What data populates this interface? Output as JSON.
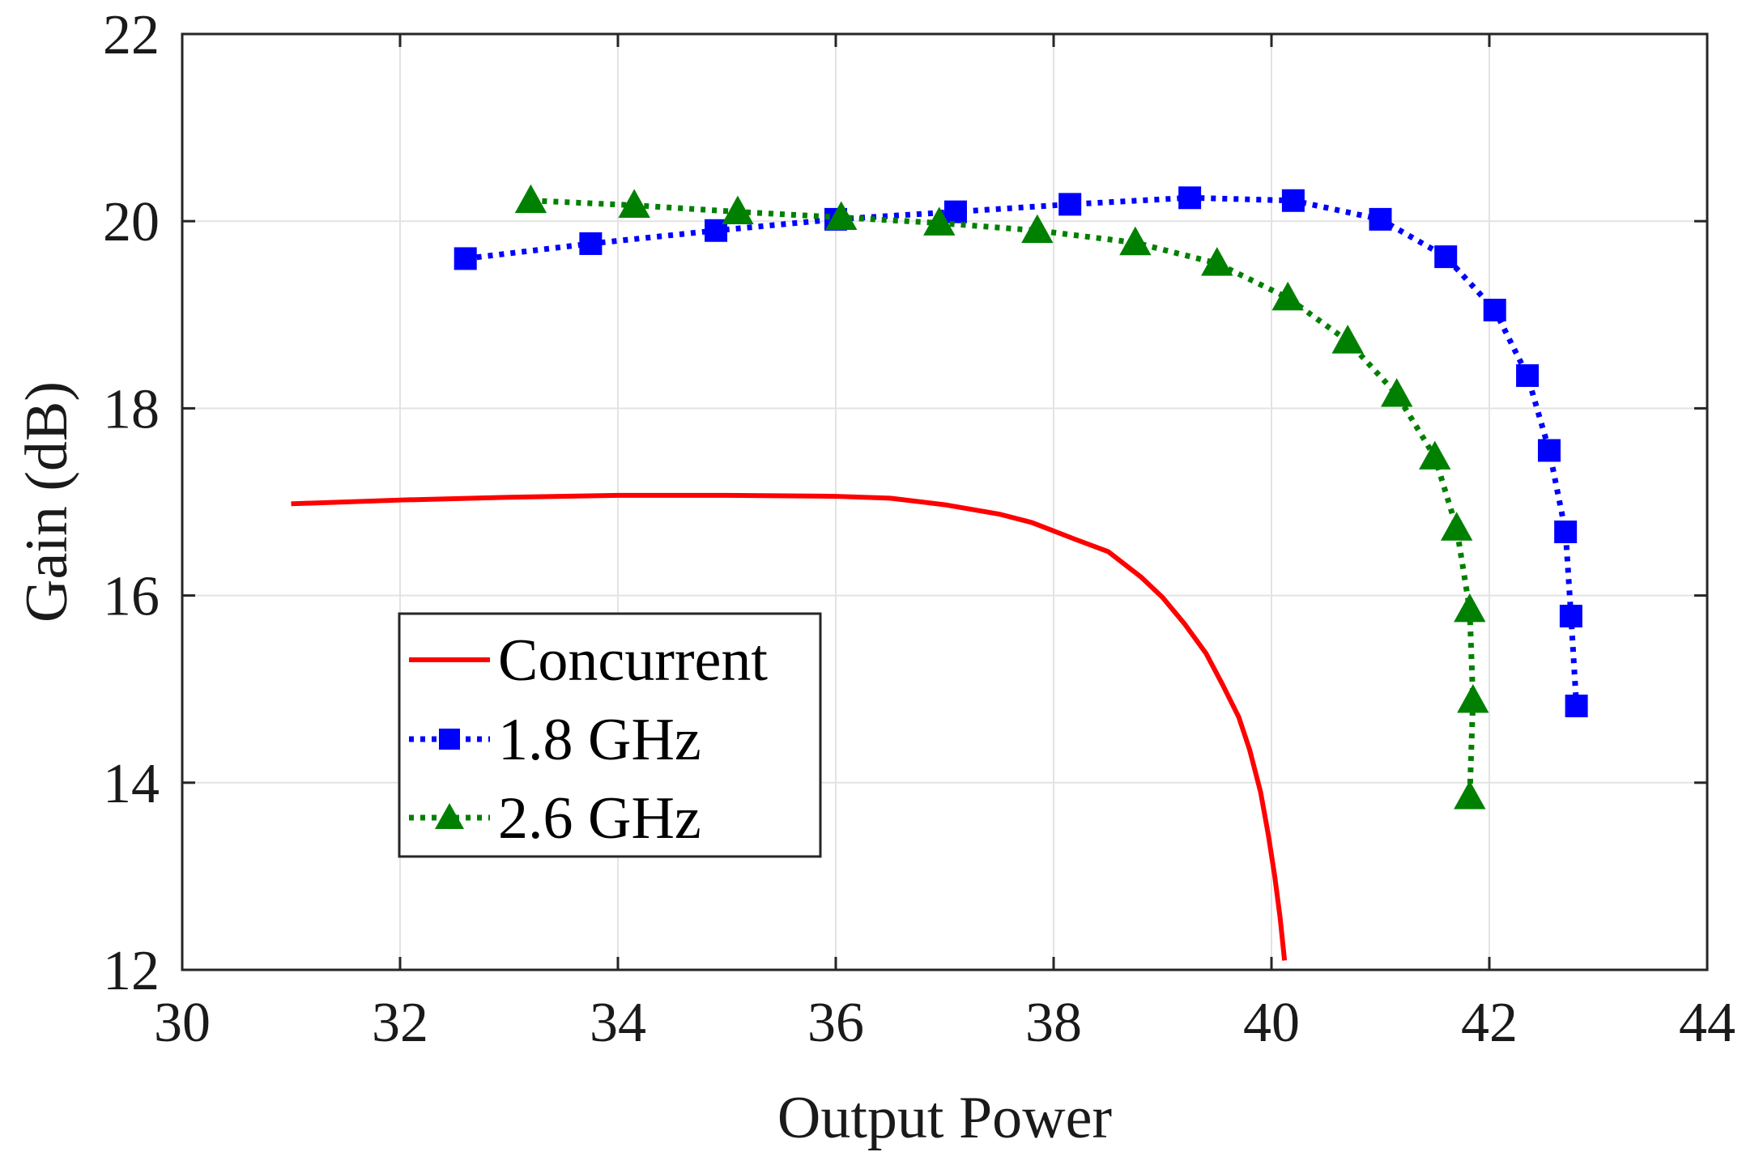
{
  "chart_data": {
    "type": "line",
    "title": "",
    "xlabel": "Output Power",
    "ylabel": "Gain (dB)",
    "xlim": [
      30,
      44
    ],
    "ylim": [
      12,
      22
    ],
    "x_ticks": [
      30,
      32,
      34,
      36,
      38,
      40,
      42,
      44
    ],
    "y_ticks": [
      12,
      14,
      16,
      18,
      20,
      22
    ],
    "grid": true,
    "legend_position": "lower-left",
    "series": [
      {
        "name": "Concurrent",
        "color": "#ff0000",
        "line_style": "solid",
        "marker": "none",
        "x": [
          31.0,
          32.0,
          33.0,
          34.0,
          35.0,
          36.0,
          36.5,
          37.0,
          37.5,
          37.8,
          38.2,
          38.5,
          38.8,
          39.0,
          39.2,
          39.4,
          39.55,
          39.7,
          39.8,
          39.9,
          39.97,
          40.03,
          40.08,
          40.12
        ],
        "y": [
          16.98,
          17.02,
          17.05,
          17.07,
          17.07,
          17.06,
          17.04,
          16.97,
          16.87,
          16.78,
          16.6,
          16.47,
          16.2,
          15.98,
          15.7,
          15.38,
          15.05,
          14.7,
          14.35,
          13.9,
          13.45,
          13.0,
          12.55,
          12.1
        ]
      },
      {
        "name": "1.8 GHz",
        "color": "#0000ff",
        "line_style": "dotted",
        "marker": "square",
        "x": [
          32.6,
          33.75,
          34.9,
          36.0,
          37.1,
          38.15,
          39.25,
          40.2,
          41.0,
          41.6,
          42.05,
          42.35,
          42.55,
          42.7,
          42.75,
          42.8
        ],
        "y": [
          19.6,
          19.76,
          19.9,
          20.02,
          20.1,
          20.18,
          20.25,
          20.22,
          20.02,
          19.62,
          19.05,
          18.35,
          17.55,
          16.68,
          15.78,
          14.82
        ]
      },
      {
        "name": "2.6 GHz",
        "color": "#008000",
        "line_style": "dotted",
        "marker": "triangle",
        "x": [
          33.2,
          34.15,
          35.1,
          36.05,
          36.95,
          37.85,
          38.75,
          39.5,
          40.15,
          40.7,
          41.15,
          41.5,
          41.7,
          41.82,
          41.85,
          41.82
        ],
        "y": [
          20.22,
          20.17,
          20.1,
          20.04,
          19.98,
          19.9,
          19.77,
          19.55,
          19.18,
          18.72,
          18.15,
          17.48,
          16.72,
          15.85,
          14.88,
          13.85
        ]
      }
    ]
  }
}
